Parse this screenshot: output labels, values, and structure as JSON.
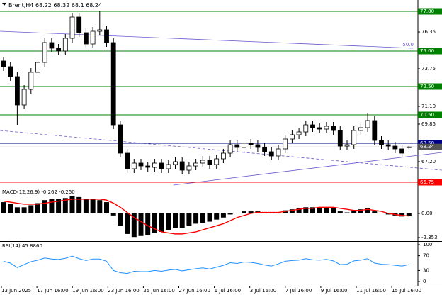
{
  "chart_data": {
    "type": "candlestick",
    "symbol": "Brent,H4",
    "open": [
      74.3,
      73.9,
      73.2,
      71.2,
      72.3,
      73.5,
      74.2,
      75.6,
      75.2,
      75.0,
      75.9,
      77.4,
      76.3,
      75.5,
      76.4,
      76.5,
      75.6,
      69.8,
      67.8,
      66.7,
      67.1,
      66.9,
      66.8,
      67.1,
      66.7,
      67.0,
      67.2,
      66.6,
      66.9,
      67.1,
      67.3,
      67.0,
      67.4,
      67.8,
      68.4,
      68.2,
      68.5,
      68.4,
      68.2,
      67.9,
      67.6,
      68.1,
      68.8,
      69.1,
      69.3,
      69.8,
      69.6,
      69.5,
      69.7,
      69.4,
      68.3,
      68.4,
      69.4,
      69.6,
      70.1,
      68.7,
      68.4,
      68.3,
      68.1,
      68.22
    ],
    "high": [
      74.6,
      74.2,
      73.5,
      72.6,
      73.8,
      74.5,
      75.9,
      75.9,
      75.5,
      76.2,
      77.7,
      77.7,
      76.6,
      76.7,
      77.8,
      76.8,
      75.9,
      70.1,
      68.1,
      67.4,
      67.4,
      67.2,
      67.4,
      67.4,
      67.3,
      67.5,
      67.5,
      67.2,
      67.4,
      67.6,
      67.6,
      67.7,
      68.1,
      68.7,
      68.7,
      68.8,
      68.8,
      68.7,
      68.5,
      68.2,
      68.4,
      69.1,
      69.4,
      69.6,
      70.1,
      70.1,
      69.9,
      70.0,
      70.0,
      69.7,
      68.7,
      69.7,
      69.9,
      70.6,
      70.4,
      69.0,
      68.7,
      68.6,
      68.4,
      68.32
    ],
    "low": [
      73.6,
      72.9,
      69.8,
      70.9,
      72.0,
      73.2,
      73.9,
      74.9,
      74.7,
      74.7,
      75.6,
      76.0,
      75.2,
      75.2,
      76.1,
      75.3,
      69.5,
      67.5,
      66.4,
      66.4,
      66.6,
      66.5,
      66.5,
      66.4,
      66.4,
      66.7,
      66.3,
      66.3,
      66.6,
      66.8,
      66.7,
      66.7,
      67.1,
      67.5,
      67.9,
      67.9,
      68.1,
      67.9,
      67.6,
      67.3,
      67.3,
      67.8,
      68.5,
      68.8,
      69.0,
      69.3,
      69.2,
      69.2,
      69.1,
      68.0,
      68.0,
      68.1,
      69.1,
      69.3,
      68.4,
      68.1,
      68.0,
      67.8,
      67.5,
      68.1
    ],
    "close": [
      73.9,
      73.2,
      71.2,
      72.3,
      73.5,
      74.2,
      75.6,
      75.2,
      75.0,
      75.9,
      77.4,
      76.3,
      75.5,
      76.4,
      76.5,
      75.6,
      69.8,
      67.8,
      66.7,
      67.1,
      66.9,
      66.8,
      67.1,
      66.7,
      67.0,
      67.2,
      66.6,
      66.9,
      67.1,
      67.3,
      67.0,
      67.4,
      67.8,
      68.4,
      68.2,
      68.5,
      68.4,
      68.2,
      67.9,
      67.6,
      68.1,
      68.8,
      69.1,
      69.3,
      69.8,
      69.6,
      69.5,
      69.7,
      69.4,
      68.3,
      68.4,
      69.4,
      69.6,
      70.1,
      68.7,
      68.4,
      68.3,
      68.1,
      67.8,
      68.24
    ],
    "ylim": [
      65.5,
      78.1
    ],
    "yticks": [
      {
        "value": 76.35,
        "label": "76.35"
      },
      {
        "value": 73.75,
        "label": "73.75"
      },
      {
        "value": 71.1,
        "label": "71.10"
      },
      {
        "value": 69.85,
        "label": "69.85"
      },
      {
        "value": 67.2,
        "label": "67.20"
      }
    ],
    "levels": [
      {
        "value": 77.8,
        "label": "77.80",
        "color": "#008000"
      },
      {
        "value": 75.0,
        "label": "75.00",
        "color": "#008000"
      },
      {
        "value": 72.5,
        "label": "72.50",
        "color": "#008000"
      },
      {
        "value": 70.5,
        "label": "70.50",
        "color": "#008000"
      },
      {
        "value": 68.5,
        "label": "68.50",
        "color": "#00008b"
      },
      {
        "value": 65.75,
        "label": "65.75",
        "color": "#ff0000"
      }
    ],
    "last_price": {
      "value": 68.24,
      "label": "68.24"
    },
    "fib_label": "50.0",
    "trendlines": [
      {
        "x": [
          -0.5,
          59.6
        ],
        "y": [
          76.4,
          75.2
        ],
        "dashed": false
      },
      {
        "x": [
          -0.5,
          63.8
        ],
        "y": [
          69.4,
          66.6
        ],
        "dashed": true
      },
      {
        "x": [
          24.7,
          63.8
        ],
        "y": [
          65.55,
          67.85
        ],
        "dashed": false
      }
    ],
    "time_labels": [
      "13 Jun 2025",
      "17 Jun 16:00",
      "19 Jun 16:00",
      "23 Jun 16:00",
      "25 Jun 16:00",
      "27 Jun 16:00",
      "1 Jul 16:00",
      "3 Jul 16:00",
      "7 Jul 16:00",
      "9 Jul 16:00",
      "11 Jul 16:00",
      "15 Jul 16:00"
    ],
    "macd": {
      "label": "MACD(12,26,9) -0.262 -0.250",
      "histogram": [
        1.1,
        0.9,
        0.6,
        0.6,
        0.8,
        1.0,
        1.3,
        1.4,
        1.4,
        1.5,
        1.7,
        1.6,
        1.4,
        1.4,
        1.3,
        1.1,
        -0.2,
        -1.2,
        -2.0,
        -2.3,
        -2.2,
        -2.1,
        -1.9,
        -1.8,
        -1.6,
        -1.4,
        -1.4,
        -1.2,
        -1.0,
        -0.9,
        -0.8,
        -0.6,
        -0.4,
        -0.1,
        0.0,
        0.2,
        0.2,
        0.2,
        0.1,
        0.0,
        0.1,
        0.3,
        0.4,
        0.5,
        0.6,
        0.6,
        0.6,
        0.6,
        0.5,
        0.2,
        0.1,
        0.3,
        0.4,
        0.5,
        0.2,
        0.0,
        -0.1,
        -0.2,
        -0.3,
        -0.262
      ],
      "signal": [
        1.2,
        1.1,
        1.0,
        0.9,
        0.9,
        0.9,
        1.0,
        1.1,
        1.2,
        1.3,
        1.4,
        1.4,
        1.4,
        1.4,
        1.4,
        1.3,
        1.0,
        0.6,
        0.1,
        -0.4,
        -0.8,
        -1.2,
        -1.5,
        -1.8,
        -1.9,
        -2.0,
        -2.0,
        -1.9,
        -1.8,
        -1.6,
        -1.4,
        -1.2,
        -1.0,
        -0.7,
        -0.4,
        -0.2,
        0.0,
        0.1,
        0.1,
        0.1,
        0.1,
        0.2,
        0.3,
        0.4,
        0.5,
        0.5,
        0.6,
        0.6,
        0.6,
        0.5,
        0.4,
        0.3,
        0.3,
        0.4,
        0.3,
        0.2,
        0.0,
        -0.1,
        -0.2,
        -0.25
      ],
      "color": "#ff0000",
      "ylim": [
        -2.7,
        2.49
      ],
      "yticks": [
        {
          "value": 0,
          "label": "0.00"
        },
        {
          "value": -2.353,
          "label": "-2.353"
        }
      ]
    },
    "rsi": {
      "label": "RSI(14) 45.8860",
      "values": [
        55,
        50,
        38,
        46,
        54,
        58,
        64,
        61,
        60,
        63,
        69,
        62,
        57,
        61,
        61,
        55,
        30,
        24,
        22,
        28,
        27,
        27,
        30,
        28,
        31,
        33,
        29,
        32,
        35,
        37,
        34,
        39,
        44,
        51,
        49,
        53,
        52,
        49,
        45,
        42,
        48,
        55,
        57,
        58,
        62,
        59,
        58,
        60,
        56,
        46,
        47,
        56,
        58,
        62,
        50,
        47,
        46,
        44,
        42,
        45.886
      ],
      "color": "#1e90ff",
      "ylim": [
        -9.6,
        105.8
      ],
      "yticks": [
        100,
        70,
        30,
        0
      ]
    }
  }
}
